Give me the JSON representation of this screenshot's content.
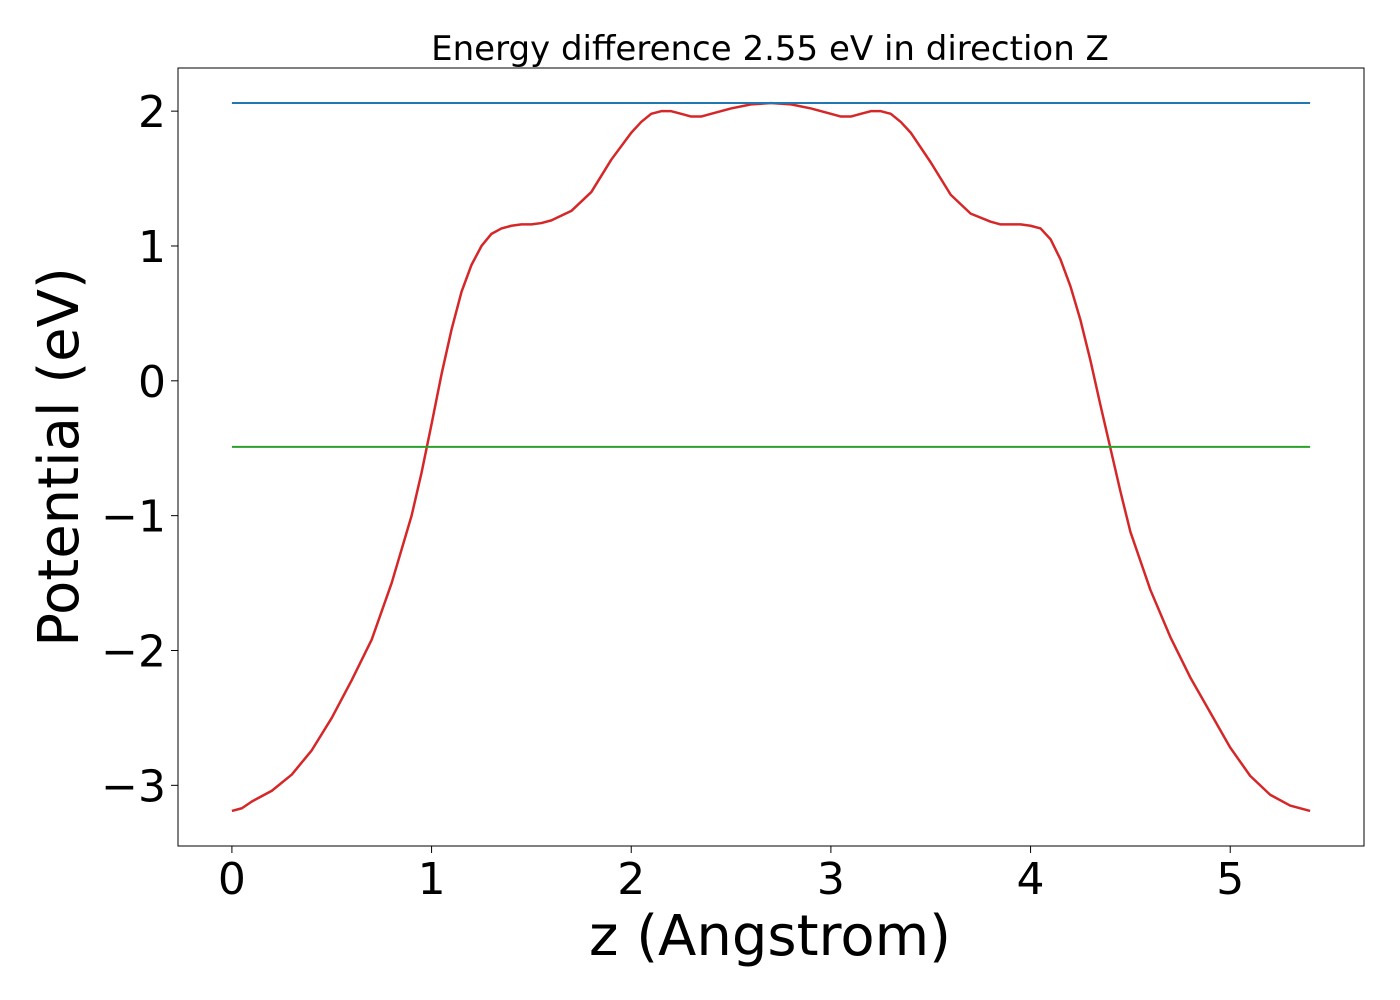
{
  "chart_data": {
    "type": "line",
    "title": "Energy difference 2.55 eV in direction Z",
    "xlabel": "z (Angstrom)",
    "ylabel": "Potential (eV)",
    "xlim": [
      -0.27,
      5.67
    ],
    "ylim": [
      -3.45,
      2.32
    ],
    "xticks": [
      0,
      1,
      2,
      3,
      4,
      5
    ],
    "xtick_labels": [
      "0",
      "1",
      "2",
      "3",
      "4",
      "5"
    ],
    "yticks": [
      -3,
      -2,
      -1,
      0,
      1,
      2
    ],
    "ytick_labels": [
      "−3",
      "−2",
      "−1",
      "0",
      "1",
      "2"
    ],
    "grid": false,
    "series": [
      {
        "color": "#d62728",
        "style": "curve",
        "x": [
          0,
          0.05,
          0.1,
          0.2,
          0.3,
          0.4,
          0.5,
          0.6,
          0.7,
          0.8,
          0.9,
          0.95,
          1.0,
          1.05,
          1.1,
          1.15,
          1.2,
          1.25,
          1.3,
          1.35,
          1.4,
          1.45,
          1.5,
          1.55,
          1.6,
          1.7,
          1.8,
          1.9,
          2.0,
          2.05,
          2.1,
          2.15,
          2.2,
          2.25,
          2.3,
          2.35,
          2.4,
          2.5,
          2.6,
          2.7,
          2.8,
          2.9,
          3.0,
          3.05,
          3.1,
          3.15,
          3.2,
          3.25,
          3.3,
          3.35,
          3.4,
          3.5,
          3.6,
          3.7,
          3.8,
          3.85,
          3.9,
          3.95,
          4.0,
          4.05,
          4.1,
          4.15,
          4.2,
          4.25,
          4.3,
          4.35,
          4.4,
          4.45,
          4.5,
          4.6,
          4.7,
          4.8,
          4.9,
          5.0,
          5.1,
          5.2,
          5.3,
          5.4
        ],
        "y": [
          -3.19,
          -3.17,
          -3.12,
          -3.04,
          -2.92,
          -2.74,
          -2.5,
          -2.22,
          -1.92,
          -1.5,
          -1.0,
          -0.68,
          -0.32,
          0.05,
          0.38,
          0.66,
          0.86,
          1.0,
          1.09,
          1.13,
          1.15,
          1.16,
          1.16,
          1.17,
          1.19,
          1.26,
          1.4,
          1.64,
          1.84,
          1.92,
          1.98,
          2.0,
          2.0,
          1.98,
          1.96,
          1.96,
          1.98,
          2.02,
          2.05,
          2.06,
          2.05,
          2.02,
          1.98,
          1.96,
          1.96,
          1.98,
          2.0,
          2.0,
          1.98,
          1.92,
          1.84,
          1.62,
          1.38,
          1.24,
          1.18,
          1.16,
          1.16,
          1.16,
          1.15,
          1.13,
          1.05,
          0.9,
          0.7,
          0.45,
          0.15,
          -0.18,
          -0.5,
          -0.82,
          -1.12,
          -1.55,
          -1.9,
          -2.2,
          -2.46,
          -2.72,
          -2.93,
          -3.07,
          -3.15,
          -3.19
        ]
      },
      {
        "color": "#1f77b4",
        "style": "line",
        "x": [
          0,
          5.4
        ],
        "y": [
          2.06,
          2.06
        ]
      },
      {
        "color": "#2ca02c",
        "style": "line",
        "x": [
          0,
          5.4
        ],
        "y": [
          -0.49,
          -0.49
        ]
      }
    ]
  }
}
